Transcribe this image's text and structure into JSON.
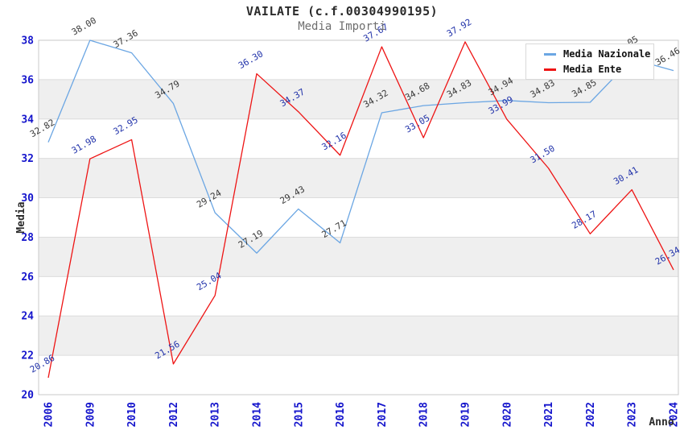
{
  "header": {
    "title": "VAILATE (c.f.00304990195)",
    "subtitle": "Media Importi"
  },
  "axes": {
    "y_title": "Media",
    "x_title": "Anno",
    "y_ticks": [
      "20",
      "22",
      "24",
      "26",
      "28",
      "30",
      "32",
      "34",
      "36",
      "38"
    ]
  },
  "colors": {
    "nazionale_line": "#6BA6E3",
    "ente_line": "#EE1414",
    "tick_label": "#1414CC",
    "nazionale_point_label": "#3a3a3a",
    "ente_point_label": "#2233AA",
    "band_fill": "#efefef",
    "gridline": "#dcdcdc",
    "frame": "#c9c9c9"
  },
  "chart_data": {
    "type": "line",
    "title": "VAILATE (c.f.00304990195)",
    "subtitle": "Media Importi",
    "xlabel": "Anno",
    "ylabel": "Media",
    "ylim": [
      20,
      38
    ],
    "ytick_step": 2,
    "grid": "horizontal-bands",
    "legend_position": "top-right",
    "categories": [
      "2006",
      "2009",
      "2010",
      "2012",
      "2013",
      "2014",
      "2015",
      "2016",
      "2017",
      "2018",
      "2019",
      "2020",
      "2021",
      "2022",
      "2023",
      "2024"
    ],
    "series": [
      {
        "name": "Media Nazionale",
        "color": "#6BA6E3",
        "label_color": "#3a3a3a",
        "values": [
          32.82,
          38.0,
          37.36,
          34.79,
          29.24,
          27.19,
          29.43,
          27.71,
          34.32,
          34.68,
          34.83,
          34.94,
          34.83,
          34.85,
          37.05,
          36.46
        ]
      },
      {
        "name": "Media Ente",
        "color": "#EE1414",
        "label_color": "#2233AA",
        "values": [
          20.86,
          31.98,
          32.95,
          21.56,
          25.04,
          36.3,
          34.37,
          32.16,
          37.67,
          33.05,
          37.92,
          33.99,
          31.5,
          28.17,
          30.41,
          26.34
        ]
      }
    ]
  }
}
